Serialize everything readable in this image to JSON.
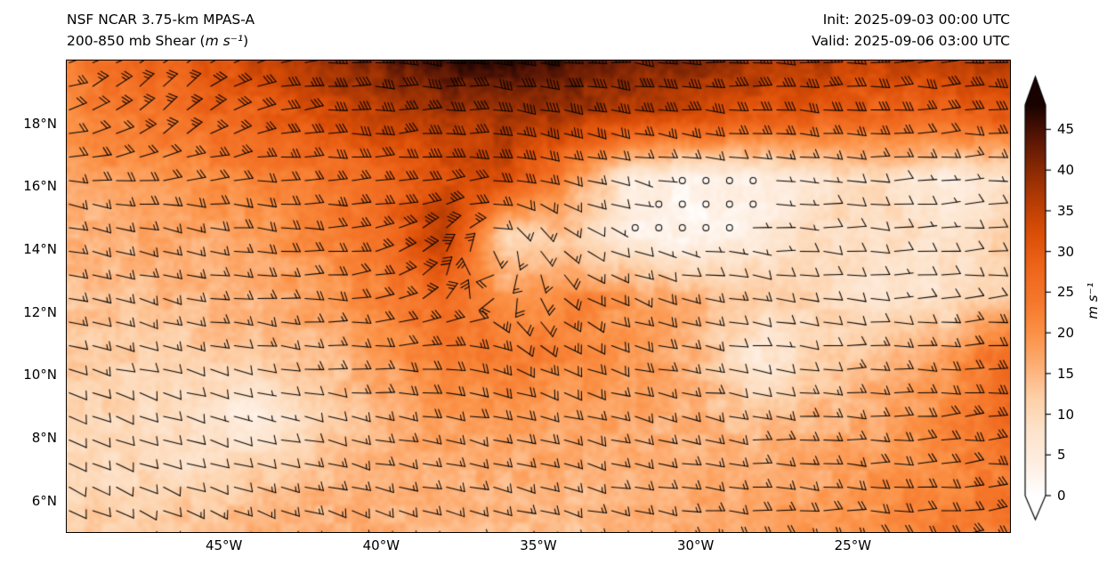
{
  "header": {
    "title_line1": "NSF NCAR 3.75-km MPAS-A",
    "title_line2_prefix": "200-850 mb Shear (",
    "title_line2_unit": "m s⁻¹",
    "title_line2_suffix": ")",
    "init_label": "Init: 2025-09-03 00:00 UTC",
    "valid_label": "Valid: 2025-09-06 03:00 UTC"
  },
  "colors": {
    "background": "#ffffff",
    "text": "#000000",
    "map_border": "#000000",
    "barb": "#000000"
  },
  "chart_data": {
    "type": "heatmap",
    "subtype": "wind-barb-shear-map",
    "title": "NSF NCAR 3.75-km MPAS-A",
    "subtitle": "200-850 mb Shear (m s⁻¹)",
    "init_time": "2025-09-03 00:00 UTC",
    "valid_time": "2025-09-06 03:00 UTC",
    "projection": "equirectangular",
    "extent": {
      "lon_min": -50,
      "lon_max": -20,
      "lat_min": 5,
      "lat_max": 20
    },
    "xticks": [
      {
        "lon": -45,
        "label": "45°W"
      },
      {
        "lon": -40,
        "label": "40°W"
      },
      {
        "lon": -35,
        "label": "35°W"
      },
      {
        "lon": -30,
        "label": "30°W"
      },
      {
        "lon": -25,
        "label": "25°W"
      }
    ],
    "yticks": [
      {
        "lat": 18,
        "label": "18°N"
      },
      {
        "lat": 16,
        "label": "16°N"
      },
      {
        "lat": 14,
        "label": "14°N"
      },
      {
        "lat": 12,
        "label": "12°N"
      },
      {
        "lat": 10,
        "label": "10°N"
      },
      {
        "lat": 8,
        "label": "8°N"
      },
      {
        "lat": 6,
        "label": "6°N"
      }
    ],
    "colorbar": {
      "label": "m s⁻¹",
      "min": 0,
      "max": 48,
      "ticks": [
        0,
        5,
        10,
        15,
        20,
        25,
        30,
        35,
        40,
        45
      ],
      "extend": "both",
      "stops": [
        [
          0,
          "#ffffff"
        ],
        [
          4,
          "#feeee1"
        ],
        [
          8,
          "#fde3cb"
        ],
        [
          12,
          "#fdd0a8"
        ],
        [
          16,
          "#fdae74"
        ],
        [
          20,
          "#fb9145"
        ],
        [
          24,
          "#f5772b"
        ],
        [
          28,
          "#ee661b"
        ],
        [
          32,
          "#dc4f08"
        ],
        [
          36,
          "#b83d04"
        ],
        [
          40,
          "#8a2a04"
        ],
        [
          44,
          "#571505"
        ],
        [
          48,
          "#190301"
        ]
      ]
    },
    "shear_grid": {
      "units": "m s⁻¹",
      "lons": [
        -50,
        -48,
        -46,
        -44,
        -42,
        -40,
        -38,
        -36,
        -34,
        -32,
        -30,
        -28,
        -26,
        -24,
        -22,
        -20
      ],
      "lats": [
        20,
        18.125,
        16.25,
        14.375,
        12.5,
        10.625,
        8.75,
        6.875,
        5
      ],
      "values": [
        [
          24,
          27,
          30,
          34,
          38,
          42,
          46,
          47,
          45,
          42,
          40,
          38,
          36,
          34,
          35,
          37
        ],
        [
          21,
          23,
          26,
          28,
          31,
          34,
          36,
          37,
          36,
          34,
          32,
          30,
          28,
          27,
          27,
          29
        ],
        [
          17,
          19,
          20,
          22,
          24,
          27,
          32,
          33,
          20,
          5,
          2,
          3,
          8,
          10,
          4,
          8
        ],
        [
          15,
          16,
          17,
          18,
          21,
          26,
          36,
          10,
          12,
          4,
          2,
          5,
          10,
          9,
          8,
          11
        ],
        [
          14,
          14,
          15,
          16,
          18,
          22,
          27,
          18,
          22,
          18,
          15,
          13,
          10,
          7,
          8,
          13
        ],
        [
          12,
          12,
          12,
          13,
          14,
          18,
          23,
          24,
          22,
          19,
          15,
          5,
          11,
          14,
          18,
          27
        ],
        [
          11,
          10,
          8,
          4,
          10,
          15,
          18,
          18,
          18,
          17,
          15,
          13,
          15,
          17,
          21,
          28
        ],
        [
          10,
          10,
          10,
          12,
          14,
          15,
          16,
          16,
          16,
          16,
          16,
          16,
          17,
          19,
          21,
          24
        ],
        [
          12,
          12,
          14,
          16,
          16,
          16,
          15,
          14,
          14,
          15,
          17,
          18,
          19,
          21,
          23,
          24
        ]
      ]
    },
    "wind_barbs": {
      "spacing_deg": 0.75,
      "full_barb": 10,
      "half_barb": 5,
      "calm_circle_below": 4,
      "color": "#000000",
      "vortex_center": {
        "lon": -36.5,
        "lat": 14.2
      }
    }
  }
}
